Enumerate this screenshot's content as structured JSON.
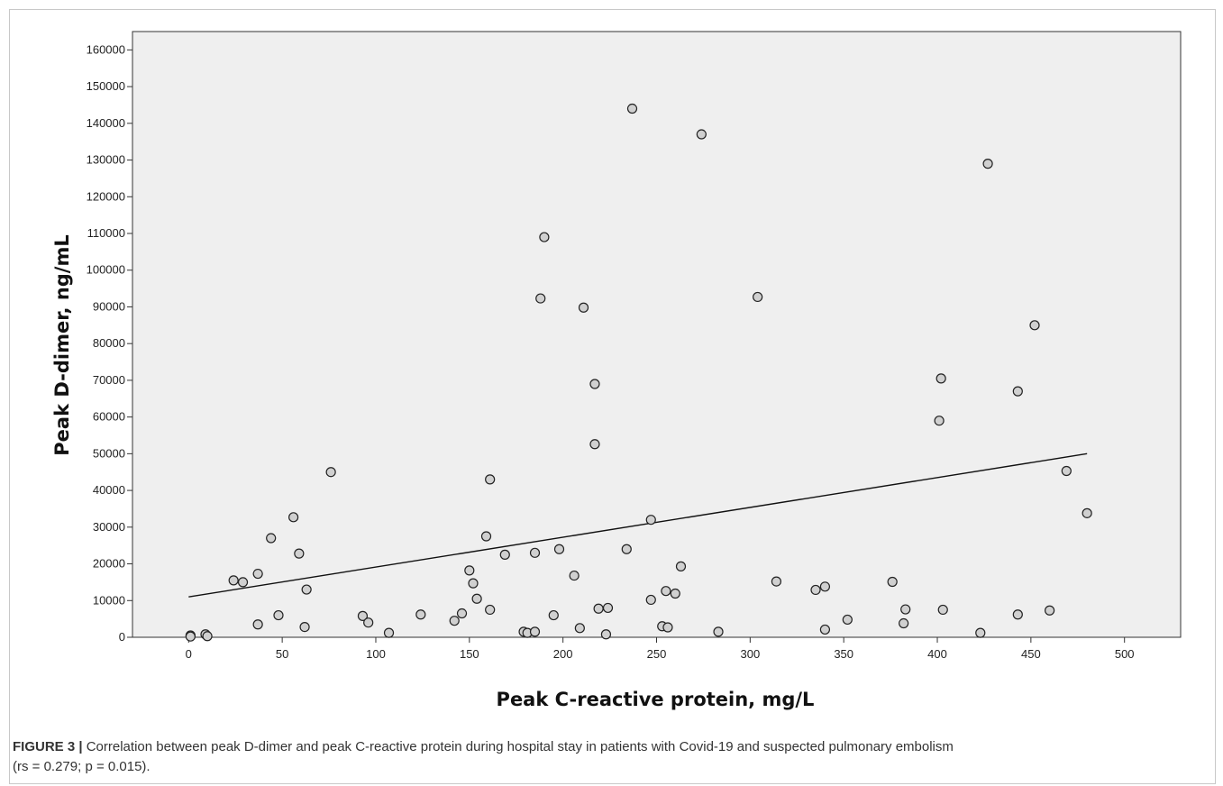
{
  "chart_data": {
    "type": "scatter",
    "xlabel": "Peak C-reactive protein, mg/L",
    "ylabel": "Peak D-dimer, ng/mL",
    "xlim": [
      -30,
      530
    ],
    "ylim": [
      0,
      165000
    ],
    "x_ticks": [
      0,
      50,
      100,
      150,
      200,
      250,
      300,
      350,
      400,
      450,
      500
    ],
    "y_ticks": [
      0,
      10000,
      20000,
      30000,
      40000,
      50000,
      60000,
      70000,
      80000,
      90000,
      100000,
      110000,
      120000,
      130000,
      140000,
      150000,
      160000
    ],
    "grid": false,
    "background": "#efefef",
    "marker_fill": "#d0d0d0",
    "marker_edge": "#222222",
    "trendline": {
      "x": [
        0,
        480
      ],
      "y": [
        11000,
        50000
      ]
    },
    "points": [
      [
        1,
        500
      ],
      [
        1,
        200
      ],
      [
        9,
        800
      ],
      [
        10,
        300
      ],
      [
        24,
        15500
      ],
      [
        29,
        15000
      ],
      [
        37,
        17300
      ],
      [
        37,
        3500
      ],
      [
        44,
        27000
      ],
      [
        48,
        6000
      ],
      [
        56,
        32700
      ],
      [
        59,
        22800
      ],
      [
        62,
        2800
      ],
      [
        63,
        13000
      ],
      [
        76,
        45000
      ],
      [
        93,
        5800
      ],
      [
        96,
        4000
      ],
      [
        107,
        1200
      ],
      [
        124,
        6200
      ],
      [
        142,
        4500
      ],
      [
        146,
        6500
      ],
      [
        150,
        18200
      ],
      [
        152,
        14700
      ],
      [
        154,
        10500
      ],
      [
        159,
        27500
      ],
      [
        161,
        43000
      ],
      [
        161,
        7500
      ],
      [
        169,
        22500
      ],
      [
        179,
        1500
      ],
      [
        181,
        1200
      ],
      [
        185,
        23000
      ],
      [
        185,
        1500
      ],
      [
        188,
        92300
      ],
      [
        190,
        109000
      ],
      [
        195,
        6000
      ],
      [
        198,
        24000
      ],
      [
        206,
        16800
      ],
      [
        209,
        2500
      ],
      [
        211,
        89800
      ],
      [
        217,
        69000
      ],
      [
        217,
        52600
      ],
      [
        219,
        7800
      ],
      [
        223,
        800
      ],
      [
        224,
        8000
      ],
      [
        234,
        24000
      ],
      [
        237,
        144000
      ],
      [
        247,
        32000
      ],
      [
        247,
        10200
      ],
      [
        253,
        3000
      ],
      [
        255,
        12600
      ],
      [
        256,
        2700
      ],
      [
        260,
        11900
      ],
      [
        263,
        19300
      ],
      [
        274,
        137000
      ],
      [
        283,
        1500
      ],
      [
        304,
        92700
      ],
      [
        314,
        15200
      ],
      [
        335,
        12900
      ],
      [
        340,
        13800
      ],
      [
        340,
        2100
      ],
      [
        352,
        4800
      ],
      [
        376,
        15100
      ],
      [
        382,
        3800
      ],
      [
        383,
        7600
      ],
      [
        401,
        59000
      ],
      [
        402,
        70500
      ],
      [
        403,
        7500
      ],
      [
        423,
        1200
      ],
      [
        427,
        129000
      ],
      [
        443,
        67000
      ],
      [
        443,
        6200
      ],
      [
        452,
        85000
      ],
      [
        460,
        7300
      ],
      [
        469,
        45300
      ],
      [
        480,
        33800
      ]
    ]
  },
  "caption": {
    "label": "FIGURE 3 |",
    "text_line1": "Correlation between peak D-dimer and peak C-reactive protein during hospital stay in patients with Covid-19 and suspected pulmonary embolism",
    "text_line2": "(rs = 0.279; p = 0.015)."
  }
}
